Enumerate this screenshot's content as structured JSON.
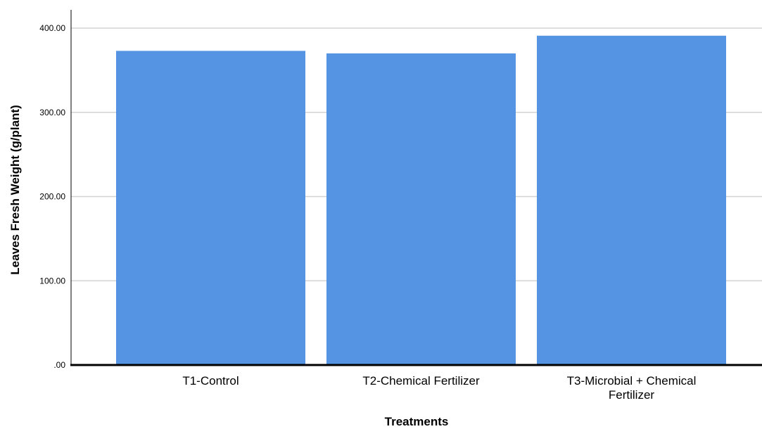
{
  "chart_data": {
    "type": "bar",
    "categories": [
      "T1-Control",
      "T2-Chemical Fertilizer",
      "T3-Microbial + Chemical Fertilizer"
    ],
    "category_label_lines": [
      [
        "T1-Control"
      ],
      [
        "T2-Chemical Fertilizer"
      ],
      [
        "T3-Microbial + Chemical",
        "Fertilizer"
      ]
    ],
    "values": [
      373,
      370,
      391
    ],
    "xlabel": "Treatments",
    "ylabel": "Leaves Fresh Weight (g/plant)",
    "ylim": [
      0,
      420
    ],
    "yticks": [
      0,
      100,
      200,
      300,
      400
    ],
    "ytick_labels": [
      ".00",
      "100.00",
      "200.00",
      "300.00",
      "400.00"
    ],
    "grid": true,
    "colors": {
      "bar": "#5594E3",
      "grid": "#d3d3d3",
      "axis": "#000000"
    }
  }
}
